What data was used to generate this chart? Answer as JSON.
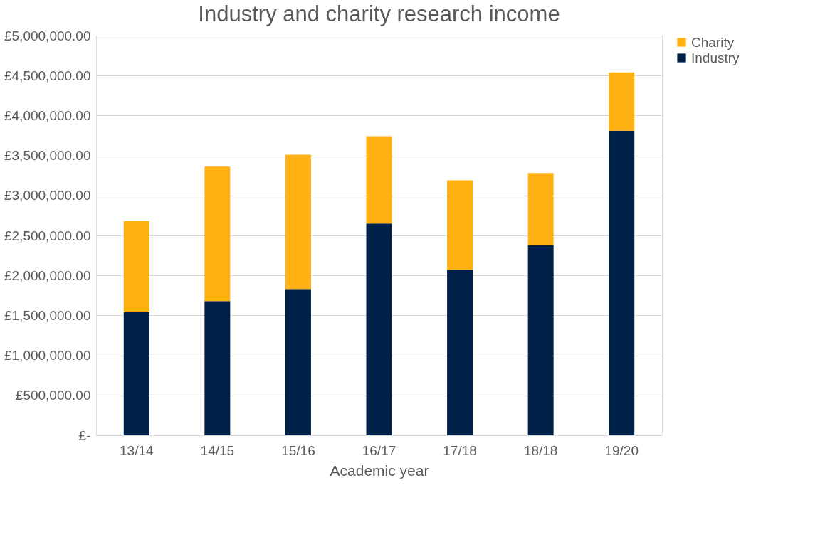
{
  "chart_data": {
    "type": "bar",
    "title": "Industry and charity research income",
    "xlabel": "Academic year",
    "categories": [
      "13/14",
      "14/15",
      "15/16",
      "16/17",
      "17/18",
      "18/18",
      "19/20"
    ],
    "series": [
      {
        "name": "Industry",
        "color": "#002147",
        "values": [
          1540000,
          1680000,
          1830000,
          2650000,
          2070000,
          2380000,
          3810000
        ]
      },
      {
        "name": "Charity",
        "color": "#ffb114",
        "values": [
          1140000,
          1680000,
          1680000,
          1090000,
          1120000,
          900000,
          730000
        ]
      }
    ],
    "stacked": true,
    "ylim": [
      0,
      5000000
    ],
    "yticks": [
      {
        "value": 0,
        "label": "£-"
      },
      {
        "value": 500000,
        "label": "£500,000.00"
      },
      {
        "value": 1000000,
        "label": "£1,000,000.00"
      },
      {
        "value": 1500000,
        "label": "£1,500,000.00"
      },
      {
        "value": 2000000,
        "label": "£2,000,000.00"
      },
      {
        "value": 2500000,
        "label": "£2,500,000.00"
      },
      {
        "value": 3000000,
        "label": "£3,000,000.00"
      },
      {
        "value": 3500000,
        "label": "£3,500,000.00"
      },
      {
        "value": 4000000,
        "label": "£4,000,000.00"
      },
      {
        "value": 4500000,
        "label": "£4,500,000.00"
      },
      {
        "value": 5000000,
        "label": "£5,000,000.00"
      }
    ],
    "grid": "y",
    "legend": "right"
  }
}
